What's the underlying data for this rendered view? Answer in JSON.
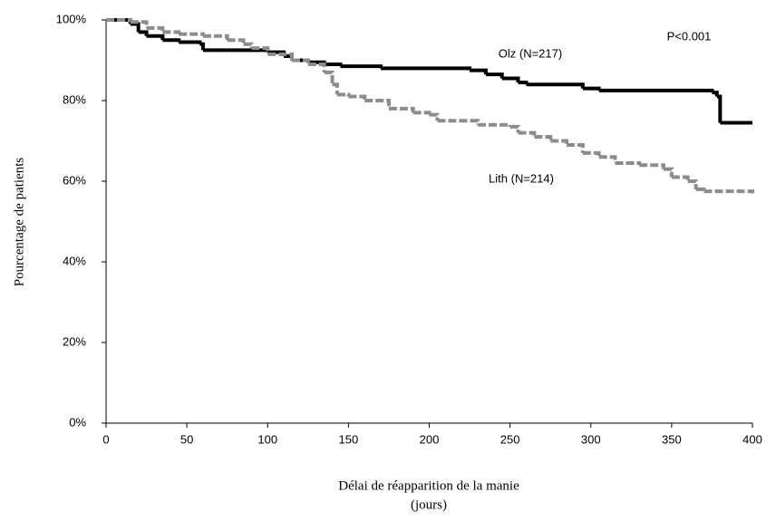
{
  "chart_data": {
    "type": "step",
    "ylabel": "Pourcentage de patients",
    "xlabel": [
      "Délai de réapparition de la manie",
      "(jours)"
    ],
    "annotation": "P<0.001",
    "xlim": [
      0,
      400
    ],
    "xticks": [
      0,
      50,
      100,
      150,
      200,
      250,
      300,
      350,
      400
    ],
    "ylim": [
      0,
      100
    ],
    "yticks": [
      {
        "value": 0,
        "label": "0%"
      },
      {
        "value": 20,
        "label": "20%"
      },
      {
        "value": 40,
        "label": "40%"
      },
      {
        "value": 60,
        "label": "60%"
      },
      {
        "value": 80,
        "label": "80%"
      },
      {
        "value": 100,
        "label": "100%"
      }
    ],
    "grid": false,
    "series": [
      {
        "name": "Olz (N=217)",
        "color": "#000000",
        "dashed": false,
        "x": [
          0,
          12,
          15,
          20,
          25,
          35,
          45,
          58,
          60,
          75,
          100,
          110,
          115,
          125,
          135,
          145,
          170,
          225,
          235,
          245,
          255,
          260,
          295,
          305,
          375,
          378,
          380,
          400
        ],
        "values": [
          100,
          100,
          99,
          97,
          96,
          95,
          94.5,
          94,
          92.5,
          92.5,
          92,
          91,
          90,
          89.5,
          89,
          88.5,
          88,
          87.5,
          86.5,
          85.5,
          84.5,
          84,
          83,
          82.5,
          82,
          81,
          74.5,
          74.5
        ]
      },
      {
        "name": "Lith (N=214)",
        "color": "#8c8c8c",
        "dashed": true,
        "x": [
          0,
          15,
          25,
          35,
          45,
          60,
          75,
          85,
          90,
          100,
          115,
          125,
          135,
          140,
          143,
          150,
          160,
          175,
          190,
          200,
          205,
          230,
          250,
          255,
          265,
          275,
          285,
          295,
          305,
          315,
          330,
          345,
          350,
          360,
          365,
          370,
          400
        ],
        "values": [
          100,
          99.5,
          98,
          97,
          96.5,
          96,
          95,
          94,
          93,
          91.5,
          90,
          89,
          87,
          84,
          81.5,
          81,
          80,
          78,
          77,
          76.5,
          75,
          74,
          73.5,
          72,
          71,
          70,
          69,
          67,
          66,
          64.5,
          64,
          63,
          61,
          60,
          58,
          57.5,
          57
        ]
      }
    ]
  }
}
